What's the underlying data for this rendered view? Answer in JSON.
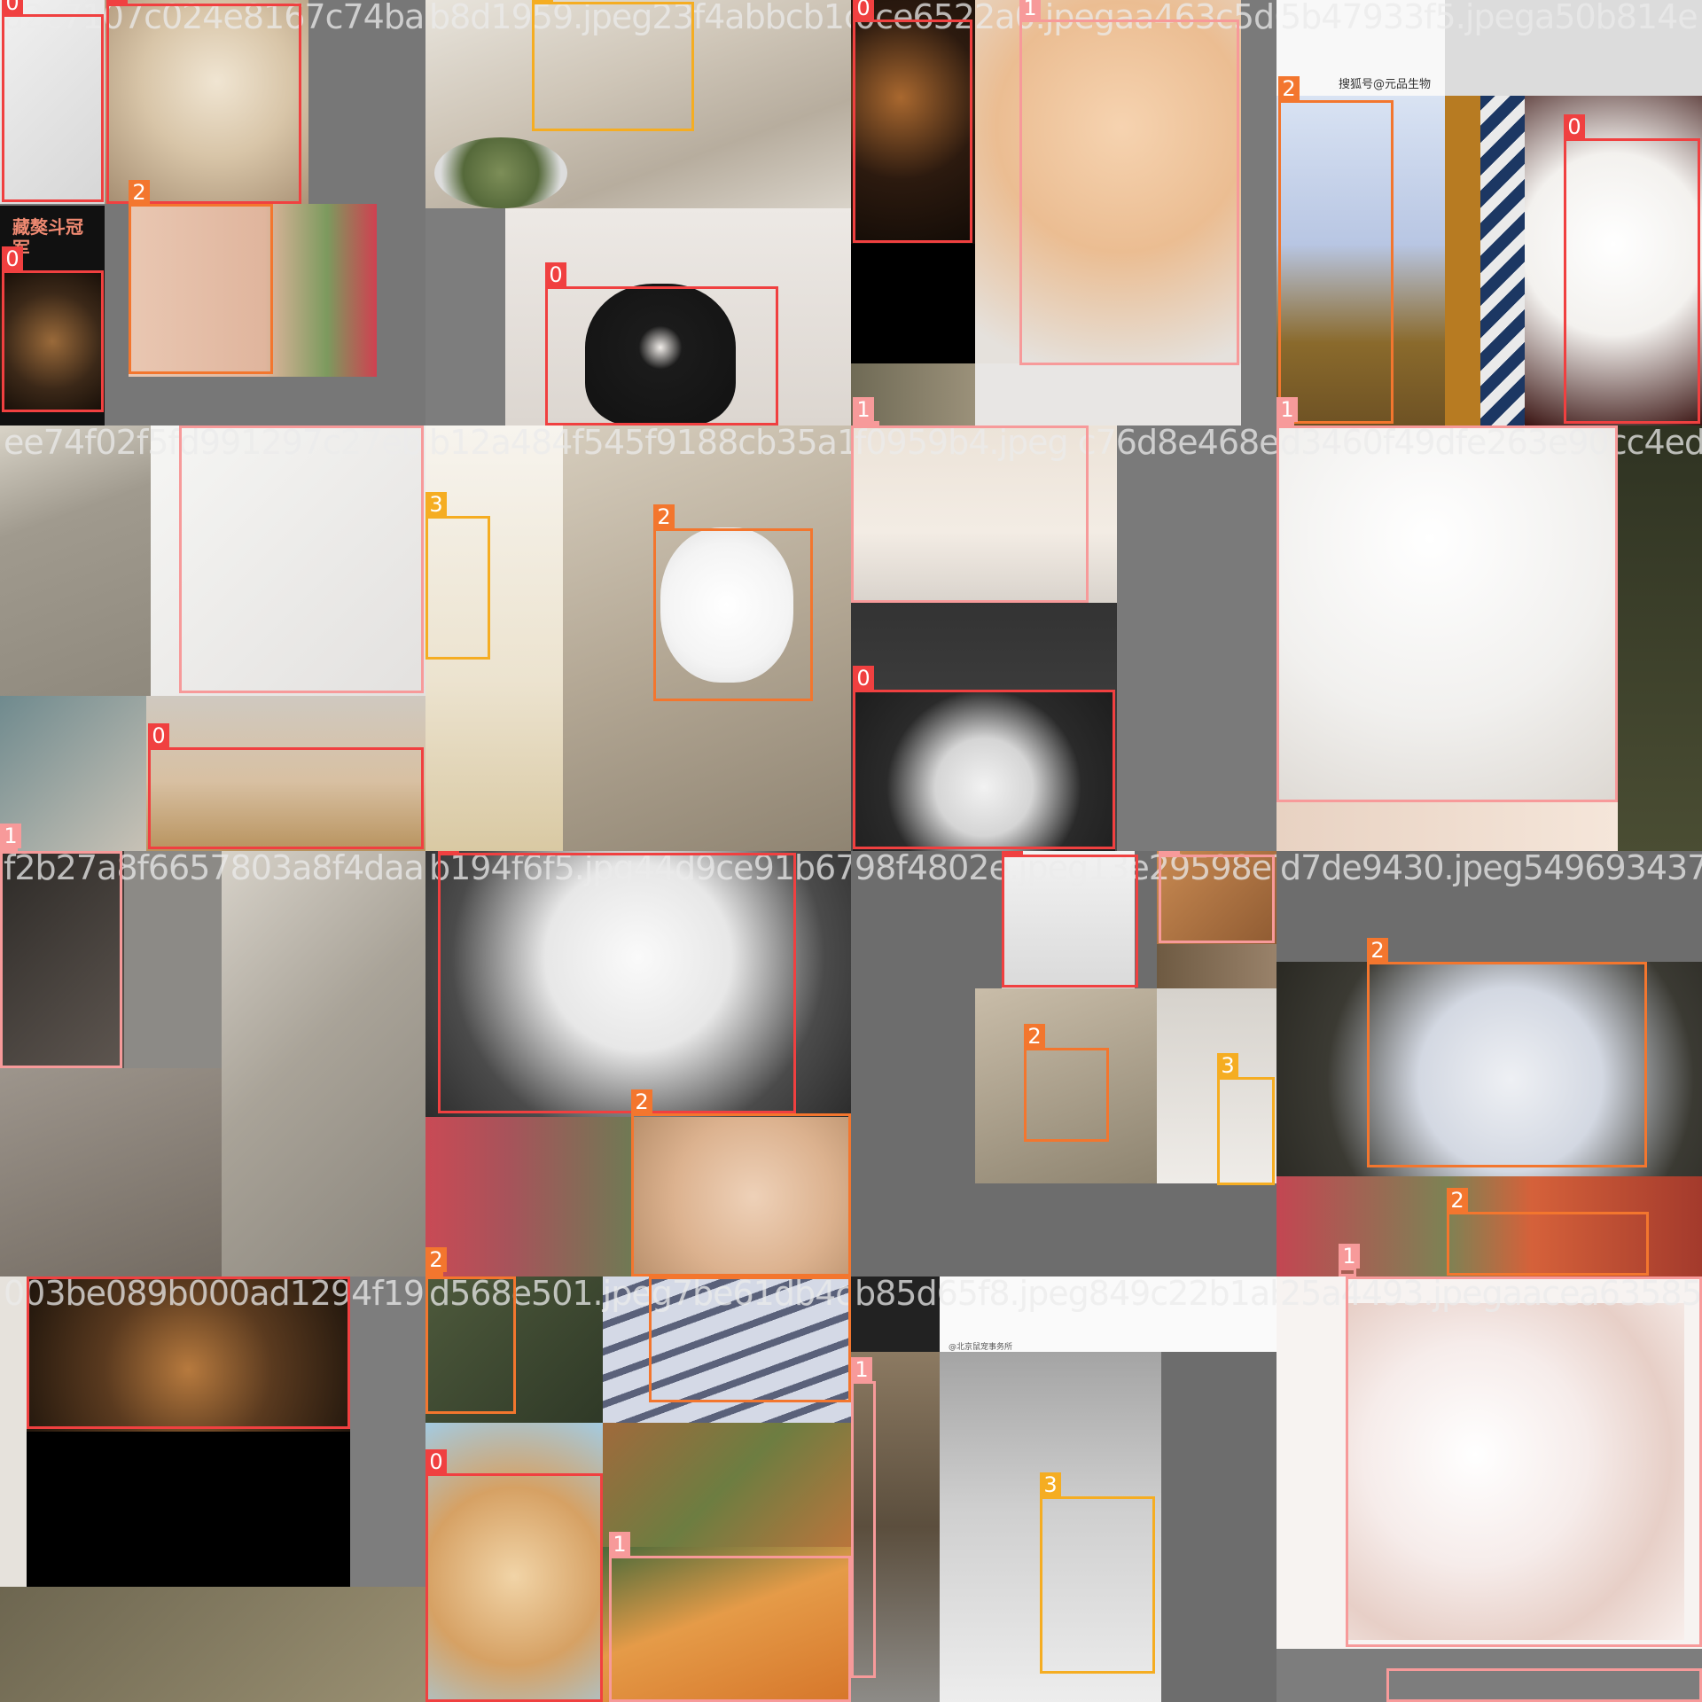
{
  "legend_colors": {
    "0": "#f04040",
    "1": "#f79a9a",
    "2": "#f3762e",
    "3": "#f5ad22"
  },
  "tiles": [
    {
      "filename": "a2c7107c024e8167c74ba02d8e5c8"
    },
    {
      "filename": "b8d1959.jpeg23f4abbcb1caf"
    },
    {
      "filename": "0ce6522a0.jpegaa463c5d605"
    },
    {
      "filename": "5b47933f5.jpega50b814e"
    },
    {
      "filename": "ee74f02f5fd991297c27ebdfdb"
    },
    {
      "filename": "b12a484f545f9188cb35a12"
    },
    {
      "filename": "f0959b4.jpeg c76d8e468e"
    },
    {
      "filename": "d3460f49dfe263e90cc4edd"
    },
    {
      "filename": "f2b27a8f6657803a8f4daaa2b"
    },
    {
      "filename": "b194f6f5.jpg44d9ce91b679b9"
    },
    {
      "filename": "98f4802e.jpeg13e29598e73"
    },
    {
      "filename": "d7de9430.jpeg549693437d7e"
    },
    {
      "filename": "003be089b000ad1294f199a"
    },
    {
      "filename": "d568e501.jpeg7be61db4cb3"
    },
    {
      "filename": "b85d65f8.jpeg849c22b1abb6"
    },
    {
      "filename": "25a4493.jpegaacea63585"
    }
  ],
  "labels": {
    "t0": [
      "0",
      "0",
      "2",
      "0"
    ],
    "t1": [
      "3",
      "0"
    ],
    "t2": [
      "0",
      "1",
      "1"
    ],
    "t3": [
      "2",
      "0",
      "1"
    ],
    "t4": [
      "1",
      "0",
      "1"
    ],
    "t5": [
      "3",
      "2"
    ],
    "t6": [
      "0"
    ],
    "t7": [],
    "t8": [
      "1"
    ],
    "t9": [
      "0",
      "2",
      "2"
    ],
    "t10": [
      "0",
      "1",
      "2",
      "3"
    ],
    "t11": [
      "2",
      "2",
      "1"
    ],
    "t12": [
      "0"
    ],
    "t13": [
      "2",
      "2",
      "0",
      "1"
    ],
    "t14": [
      "1",
      "3"
    ],
    "t15": [
      "1"
    ]
  },
  "watermarks": {
    "t0": "藏獒斗冠军",
    "t3": "搜狐号@元品生物",
    "t14": "@北京鼠宠事务所"
  }
}
